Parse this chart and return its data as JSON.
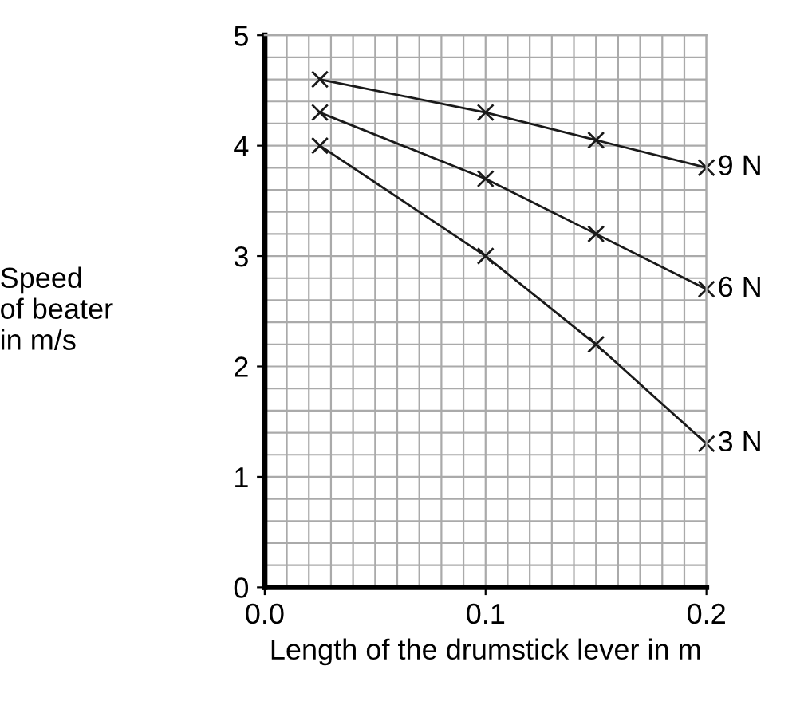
{
  "chart_data": {
    "type": "line",
    "xlabel": "Length of the drumstick lever in m",
    "ylabel": "Speed\nof beater\nin m/s",
    "x": [
      0.025,
      0.1,
      0.15,
      0.2
    ],
    "series": [
      {
        "name": "9 N",
        "color": "#1a1a1a",
        "values": [
          4.6,
          4.3,
          4.05,
          3.8
        ]
      },
      {
        "name": "6 N",
        "color": "#1a1a1a",
        "values": [
          4.3,
          3.7,
          3.2,
          2.7
        ]
      },
      {
        "name": "3 N",
        "color": "#1a1a1a",
        "values": [
          4.0,
          3.0,
          2.2,
          1.3
        ]
      }
    ],
    "xlim": [
      0,
      0.2
    ],
    "ylim": [
      0,
      5
    ],
    "xticks": [
      {
        "value": 0,
        "label": "0.0"
      },
      0.1,
      0.2
    ],
    "yticks": [
      0,
      1,
      2,
      3,
      4,
      5
    ],
    "grid": true,
    "marker": "cross",
    "line_style": "solid",
    "legend": false
  }
}
